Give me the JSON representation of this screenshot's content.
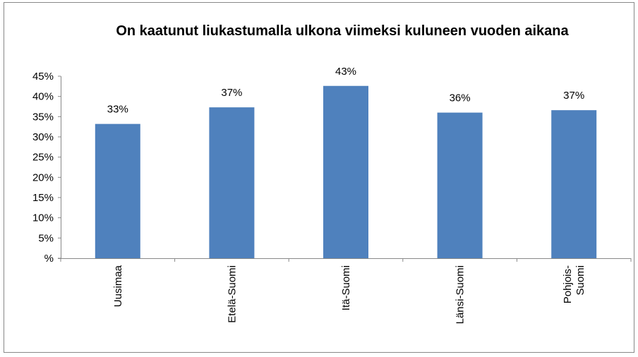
{
  "chart_data": {
    "type": "bar",
    "title": "On kaatunut liukastumalla ulkona viimeksi kuluneen vuoden aikana",
    "categories": [
      "Uusimaa",
      "Etelä-Suomi",
      "Itä-Suomi",
      "Länsi-Suomi",
      "Pohjois-\nSuomi"
    ],
    "values": [
      33.2,
      37.3,
      42.6,
      36.0,
      36.6
    ],
    "value_labels": [
      "33%",
      "37%",
      "43%",
      "36%",
      "37%"
    ],
    "color": "#4f81bd",
    "ylim": [
      0,
      45
    ],
    "yticks": [
      {
        "value": 0,
        "label": "%"
      },
      {
        "value": 5,
        "label": "5%"
      },
      {
        "value": 10,
        "label": "10%"
      },
      {
        "value": 15,
        "label": "15%"
      },
      {
        "value": 20,
        "label": "20%"
      },
      {
        "value": 25,
        "label": "25%"
      },
      {
        "value": 30,
        "label": "30%"
      },
      {
        "value": 35,
        "label": "35%"
      },
      {
        "value": 40,
        "label": "40%"
      },
      {
        "value": 45,
        "label": "45%"
      }
    ]
  }
}
